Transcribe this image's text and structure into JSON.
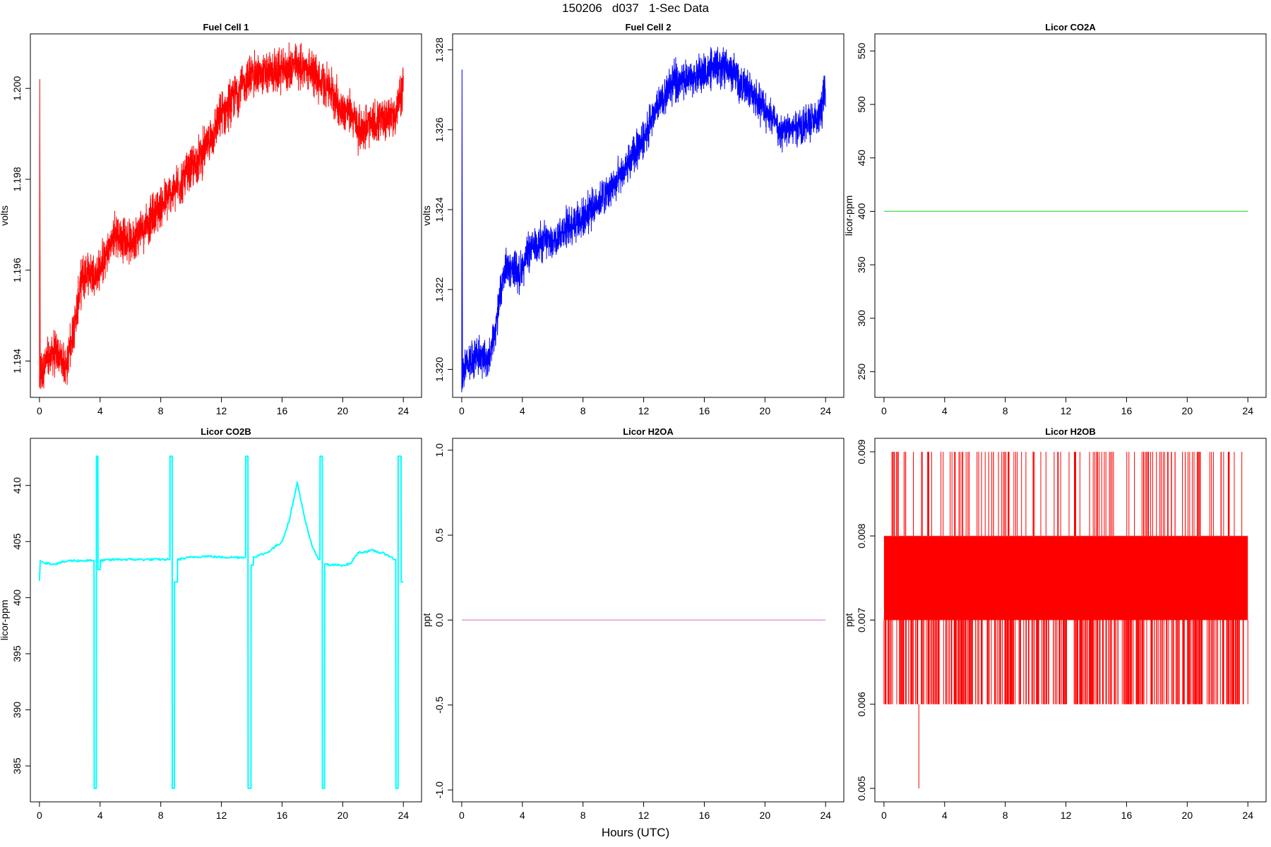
{
  "figure": {
    "title": "150206   d037   1-Sec Data",
    "xlabel": "Hours (UTC)"
  },
  "chart_data": [
    {
      "type": "line",
      "title": "Fuel Cell 1",
      "ylabel": "volts",
      "color": "#ff0000",
      "xlim": [
        -0.6,
        25.2
      ],
      "ylim": [
        1.1932,
        1.2012
      ],
      "xticks": [
        0,
        4,
        8,
        12,
        16,
        20,
        24
      ],
      "yticks": [
        1.194,
        1.196,
        1.198,
        1.2
      ],
      "ytick_labels": [
        "1.194",
        "1.196",
        "1.198",
        "1.200"
      ],
      "x": [
        0,
        0.02,
        0.05,
        0.5,
        1.0,
        1.8,
        2.3,
        2.8,
        3.2,
        3.8,
        4.5,
        5.0,
        6.0,
        7.0,
        8.0,
        9.0,
        10.0,
        11.0,
        12.0,
        13.0,
        14.0,
        15.0,
        16.0,
        17.0,
        18.0,
        18.5,
        19.0,
        20.0,
        20.5,
        21.0,
        22.0,
        23.0,
        23.5,
        24.0
      ],
      "y": [
        1.1936,
        1.2002,
        1.1937,
        1.194,
        1.1942,
        1.1939,
        1.1948,
        1.1958,
        1.196,
        1.1959,
        1.1964,
        1.1968,
        1.1966,
        1.197,
        1.1974,
        1.1978,
        1.1982,
        1.1987,
        1.1994,
        1.1999,
        1.2003,
        1.2003,
        1.2004,
        1.2005,
        1.2004,
        1.2001,
        1.2001,
        1.1995,
        1.1995,
        1.1991,
        1.1992,
        1.1994,
        1.1994,
        1.2001
      ],
      "noise": 0.00045
    },
    {
      "type": "line",
      "title": "Fuel Cell 2",
      "ylabel": "volts",
      "color": "#0000ff",
      "xlim": [
        -0.6,
        25.2
      ],
      "ylim": [
        1.3193,
        1.3284
      ],
      "xticks": [
        0,
        4,
        8,
        12,
        16,
        20,
        24
      ],
      "yticks": [
        1.32,
        1.322,
        1.324,
        1.326,
        1.328
      ],
      "ytick_labels": [
        "1.320",
        "1.322",
        "1.324",
        "1.326",
        "1.328"
      ],
      "x": [
        0,
        0.02,
        0.05,
        0.5,
        1.0,
        1.8,
        2.3,
        2.8,
        3.2,
        3.8,
        4.5,
        5.0,
        6.0,
        7.0,
        8.0,
        9.0,
        10.0,
        11.0,
        12.0,
        13.0,
        14.0,
        15.0,
        16.0,
        17.0,
        18.0,
        18.5,
        19.0,
        20.0,
        20.5,
        21.0,
        22.0,
        23.0,
        23.5,
        24.0
      ],
      "y": [
        1.3198,
        1.3275,
        1.3199,
        1.3202,
        1.3204,
        1.3202,
        1.3212,
        1.3224,
        1.3226,
        1.3224,
        1.323,
        1.3232,
        1.3232,
        1.3236,
        1.3238,
        1.3242,
        1.3246,
        1.3251,
        1.3258,
        1.3266,
        1.3272,
        1.3273,
        1.3274,
        1.3276,
        1.3274,
        1.3271,
        1.327,
        1.3265,
        1.3263,
        1.3259,
        1.3261,
        1.3262,
        1.3262,
        1.327
      ],
      "noise": 0.00045
    },
    {
      "type": "line",
      "title": "Licor CO2A",
      "ylabel": "licor-ppm",
      "color": "#44dd44",
      "xlim": [
        -0.6,
        25.2
      ],
      "ylim": [
        226,
        566
      ],
      "xticks": [
        0,
        4,
        8,
        12,
        16,
        20,
        24
      ],
      "yticks": [
        250,
        300,
        350,
        400,
        450,
        500,
        550
      ],
      "ytick_labels": [
        "250",
        "300",
        "350",
        "400",
        "450",
        "500",
        "550"
      ],
      "x": [
        0,
        24
      ],
      "y": [
        400,
        400
      ],
      "noise": 0
    },
    {
      "type": "line",
      "title": "Licor CO2B",
      "ylabel": "licor-ppm",
      "color": "#00ffff",
      "xlim": [
        -0.6,
        25.2
      ],
      "ylim": [
        381.8,
        414.2
      ],
      "xticks": [
        0,
        4,
        8,
        12,
        16,
        20,
        24
      ],
      "yticks": [
        385,
        390,
        395,
        400,
        405,
        410
      ],
      "ytick_labels": [
        "385",
        "390",
        "395",
        "400",
        "405",
        "410"
      ],
      "x": [
        0,
        0.05,
        0.3,
        1.0,
        2.0,
        3.5,
        3.6,
        3.61,
        3.75,
        3.76,
        3.85,
        3.86,
        4.0,
        4.01,
        5.0,
        6.0,
        7.0,
        8.5,
        8.6,
        8.61,
        8.75,
        8.76,
        8.9,
        8.91,
        9.1,
        9.11,
        10.0,
        11.0,
        12.0,
        13.5,
        13.6,
        13.61,
        13.75,
        13.76,
        13.95,
        13.96,
        14.1,
        14.11,
        15.0,
        16.0,
        16.5,
        17.0,
        17.5,
        18.0,
        18.4,
        18.5,
        18.51,
        18.65,
        18.66,
        18.8,
        18.81,
        19.0,
        19.01,
        20.0,
        20.5,
        21.0,
        22.0,
        23.0,
        23.4,
        23.5,
        23.51,
        23.65,
        23.66,
        23.85,
        23.86,
        24.0
      ],
      "y": [
        401.5,
        403.3,
        403.1,
        403.0,
        403.3,
        403.3,
        403.3,
        383.0,
        383.0,
        412.6,
        412.6,
        402.5,
        402.5,
        403.3,
        403.4,
        403.4,
        403.4,
        403.4,
        403.4,
        412.6,
        412.6,
        383.0,
        383.0,
        401.4,
        401.4,
        403.4,
        403.6,
        403.7,
        403.6,
        403.6,
        403.6,
        412.6,
        412.6,
        383.0,
        383.0,
        402.9,
        402.9,
        403.6,
        404.0,
        405.0,
        407.0,
        410.3,
        407.0,
        404.5,
        403.4,
        403.4,
        412.6,
        412.6,
        383.0,
        383.0,
        403.0,
        403.0,
        402.9,
        402.9,
        403.0,
        404.0,
        404.2,
        403.8,
        403.4,
        403.4,
        383.0,
        383.0,
        412.6,
        412.6,
        401.4,
        401.4
      ],
      "noise": 0.1
    },
    {
      "type": "line",
      "title": "Licor H2OA",
      "ylabel": "ppt",
      "color": "#dd88dd",
      "xlim": [
        -0.6,
        25.2
      ],
      "ylim": [
        -1.07,
        1.07
      ],
      "xticks": [
        0,
        4,
        8,
        12,
        16,
        20,
        24
      ],
      "yticks": [
        -1.0,
        -0.5,
        0.0,
        0.5,
        1.0
      ],
      "ytick_labels": [
        "-1.0",
        "-0.5",
        "0.0",
        "0.5",
        "1.0"
      ],
      "x": [
        0,
        24
      ],
      "y": [
        0,
        0
      ],
      "noise": 0
    },
    {
      "type": "line",
      "title": "Licor H2OB",
      "ylabel": "ppt",
      "color": "#ff0000",
      "xlim": [
        -0.6,
        25.2
      ],
      "ylim": [
        0.00484,
        0.00916
      ],
      "xticks": [
        0,
        4,
        8,
        12,
        16,
        20,
        24
      ],
      "yticks": [
        0.005,
        0.006,
        0.007,
        0.008,
        0.009
      ],
      "ytick_labels": [
        "0.005",
        "0.006",
        "0.007",
        "0.008",
        "0.009"
      ],
      "x": [
        0,
        24
      ],
      "y": [
        0.007,
        0.008
      ],
      "band": [
        0.007,
        0.008
      ],
      "spike_top": 0.009,
      "spike_bottom": 0.006,
      "dip": {
        "x": 2.3,
        "y": 0.005
      },
      "noise": 0
    }
  ]
}
